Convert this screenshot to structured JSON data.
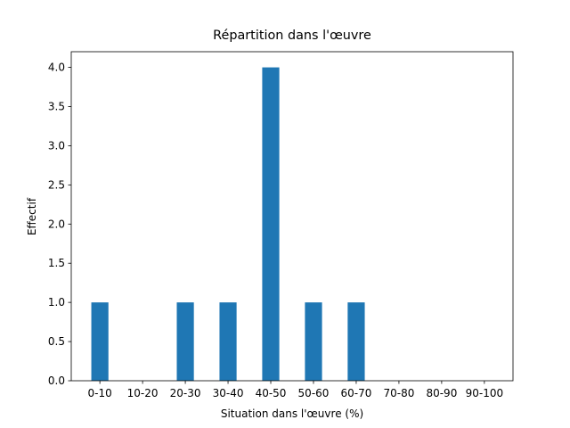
{
  "chart_data": {
    "type": "bar",
    "title": "Répartition dans l'œuvre",
    "xlabel": "Situation dans l'œuvre (%)",
    "ylabel": "Effectif",
    "categories": [
      "0-10",
      "10-20",
      "20-30",
      "30-40",
      "40-50",
      "50-60",
      "60-70",
      "70-80",
      "80-90",
      "90-100"
    ],
    "values": [
      1,
      0,
      1,
      1,
      4,
      1,
      1,
      0,
      0,
      0
    ],
    "color": "#1f77b4",
    "ylim": [
      0,
      4.2
    ],
    "yticks": [
      {
        "value": 0,
        "label": "0.0"
      },
      0.5,
      {
        "value": 1,
        "label": "1.0"
      },
      1.5,
      {
        "value": 2,
        "label": "2.0"
      },
      2.5,
      {
        "value": 3,
        "label": "3.0"
      },
      3.5,
      {
        "value": 4,
        "label": "4.0"
      }
    ],
    "grid": false
  }
}
